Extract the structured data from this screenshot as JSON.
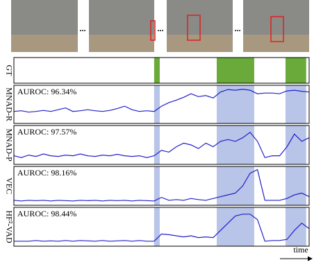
{
  "figure": {
    "gaps": [
      "...",
      "...",
      "..."
    ]
  },
  "chart_data": [
    {
      "type": "intervals",
      "ylabel": "GT",
      "color": "#6aaa3a",
      "xlim": [
        0,
        100
      ],
      "intervals": [
        [
          47.5,
          49.4
        ],
        [
          68.7,
          81.4
        ],
        [
          92,
          99
        ]
      ]
    },
    {
      "type": "line",
      "ylabel": "MNAD-R",
      "annotation": "AUROC: 96.34%",
      "xlim": [
        0,
        100
      ],
      "ylim": [
        0,
        1
      ],
      "shade_color": "#b8c4e8",
      "x": [
        0,
        2.5,
        5,
        7.5,
        10,
        12.5,
        15,
        17.5,
        20,
        22.5,
        25,
        27.5,
        30,
        32.5,
        35,
        37.5,
        40,
        42.5,
        45,
        47.5,
        50,
        52.5,
        55,
        57.5,
        60,
        62.5,
        65,
        67.5,
        70,
        72.5,
        75,
        77.5,
        80,
        82.5,
        85,
        87.5,
        90,
        92.5,
        95,
        97.5,
        100
      ],
      "series": [
        {
          "color": "#2020c8",
          "values": [
            0.3,
            0.32,
            0.28,
            0.3,
            0.33,
            0.3,
            0.35,
            0.4,
            0.3,
            0.32,
            0.35,
            0.32,
            0.3,
            0.33,
            0.38,
            0.45,
            0.35,
            0.3,
            0.32,
            0.3,
            0.45,
            0.55,
            0.62,
            0.7,
            0.8,
            0.72,
            0.75,
            0.68,
            0.85,
            0.92,
            0.9,
            0.93,
            0.9,
            0.8,
            0.82,
            0.82,
            0.8,
            0.88,
            0.9,
            0.87,
            0.85
          ]
        }
      ]
    },
    {
      "type": "line",
      "ylabel": "MNAD-P",
      "annotation": "AUROC: 97.57%",
      "xlim": [
        0,
        100
      ],
      "ylim": [
        0,
        1
      ],
      "shade_color": "#b8c4e8",
      "x": [
        0,
        2.5,
        5,
        7.5,
        10,
        12.5,
        15,
        17.5,
        20,
        22.5,
        25,
        27.5,
        30,
        32.5,
        35,
        37.5,
        40,
        42.5,
        45,
        47.5,
        50,
        52.5,
        55,
        57.5,
        60,
        62.5,
        65,
        67.5,
        70,
        72.5,
        75,
        77.5,
        80,
        82.5,
        85,
        87.5,
        90,
        92.5,
        95,
        97.5,
        100
      ],
      "series": [
        {
          "color": "#2020c8",
          "values": [
            0.2,
            0.15,
            0.22,
            0.18,
            0.25,
            0.2,
            0.18,
            0.22,
            0.2,
            0.25,
            0.2,
            0.18,
            0.22,
            0.2,
            0.24,
            0.2,
            0.18,
            0.2,
            0.15,
            0.2,
            0.35,
            0.3,
            0.45,
            0.55,
            0.5,
            0.4,
            0.55,
            0.45,
            0.6,
            0.65,
            0.6,
            0.7,
            0.85,
            0.6,
            0.15,
            0.2,
            0.2,
            0.45,
            0.8,
            0.6,
            0.7
          ]
        }
      ]
    },
    {
      "type": "line",
      "ylabel": "VEC",
      "annotation": "AUROC: 98.16%",
      "xlim": [
        0,
        100
      ],
      "ylim": [
        0,
        1
      ],
      "shade_color": "#b8c4e8",
      "x": [
        0,
        2.5,
        5,
        7.5,
        10,
        12.5,
        15,
        17.5,
        20,
        22.5,
        25,
        27.5,
        30,
        32.5,
        35,
        37.5,
        40,
        42.5,
        45,
        47.5,
        50,
        52.5,
        55,
        57.5,
        60,
        62.5,
        65,
        67.5,
        70,
        72.5,
        75,
        77.5,
        80,
        82.5,
        85,
        87.5,
        90,
        92.5,
        95,
        97.5,
        100
      ],
      "series": [
        {
          "color": "#2020c8",
          "values": [
            0.1,
            0.08,
            0.1,
            0.09,
            0.1,
            0.08,
            0.1,
            0.09,
            0.08,
            0.1,
            0.09,
            0.1,
            0.08,
            0.1,
            0.09,
            0.1,
            0.08,
            0.1,
            0.09,
            0.08,
            0.18,
            0.1,
            0.12,
            0.1,
            0.15,
            0.12,
            0.1,
            0.15,
            0.2,
            0.25,
            0.3,
            0.5,
            0.85,
            0.95,
            0.1,
            0.1,
            0.1,
            0.15,
            0.25,
            0.3,
            0.2
          ]
        }
      ]
    },
    {
      "type": "line",
      "ylabel": "HF²-VAD",
      "annotation": "AUROC: 98.44%",
      "xlabel": "time",
      "xlim": [
        0,
        100
      ],
      "ylim": [
        0,
        1
      ],
      "shade_color": "#b8c4e8",
      "x": [
        0,
        2.5,
        5,
        7.5,
        10,
        12.5,
        15,
        17.5,
        20,
        22.5,
        25,
        27.5,
        30,
        32.5,
        35,
        37.5,
        40,
        42.5,
        45,
        47.5,
        50,
        52.5,
        55,
        57.5,
        60,
        62.5,
        65,
        67.5,
        70,
        72.5,
        75,
        77.5,
        80,
        82.5,
        85,
        87.5,
        90,
        92.5,
        95,
        97.5,
        100
      ],
      "series": [
        {
          "color": "#2020c8",
          "values": [
            0.1,
            0.1,
            0.1,
            0.12,
            0.1,
            0.11,
            0.1,
            0.12,
            0.1,
            0.12,
            0.11,
            0.1,
            0.12,
            0.1,
            0.11,
            0.12,
            0.1,
            0.12,
            0.1,
            0.1,
            0.3,
            0.28,
            0.25,
            0.22,
            0.25,
            0.2,
            0.22,
            0.2,
            0.4,
            0.6,
            0.8,
            0.85,
            0.85,
            0.7,
            0.1,
            0.12,
            0.12,
            0.15,
            0.4,
            0.6,
            0.45
          ]
        }
      ]
    }
  ]
}
